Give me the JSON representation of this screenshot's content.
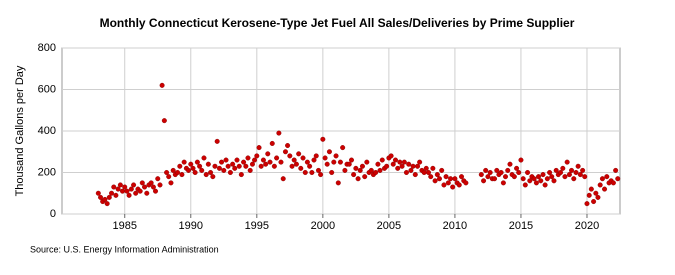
{
  "chart_data": {
    "type": "scatter",
    "title": "Monthly Connecticut Kerosene-Type Jet Fuel All Sales/Deliveries by Prime Supplier",
    "y_label": "Thousand Gallons per Day",
    "source": "Source: U.S. Energy Information Administration",
    "color": "#cc0000",
    "grid": true,
    "xlim": [
      1980.25,
      2022.5
    ],
    "xticks": [
      1985,
      1990,
      1995,
      2000,
      2005,
      2010,
      2015,
      2020
    ],
    "ylim": [
      0,
      800
    ],
    "yticks": [
      0,
      200,
      400,
      600,
      800
    ],
    "series": [
      {
        "name": "Connecticut",
        "color": "#cc0000",
        "x": [
          1983.0,
          1983.17,
          1983.33,
          1983.5,
          1983.67,
          1983.83,
          1984.0,
          1984.17,
          1984.33,
          1984.5,
          1984.67,
          1984.83,
          1985.0,
          1985.17,
          1985.33,
          1985.5,
          1985.67,
          1985.83,
          1986.0,
          1986.17,
          1986.33,
          1986.5,
          1986.67,
          1986.83,
          1987.0,
          1987.17,
          1987.33,
          1987.5,
          1987.67,
          1987.83,
          1988.0,
          1988.17,
          1988.33,
          1988.5,
          1988.67,
          1988.83,
          1989.0,
          1989.17,
          1989.33,
          1989.5,
          1989.67,
          1989.83,
          1990.0,
          1990.17,
          1990.33,
          1990.5,
          1990.67,
          1990.83,
          1991.0,
          1991.17,
          1991.33,
          1991.5,
          1991.67,
          1991.83,
          1992.0,
          1992.17,
          1992.33,
          1992.5,
          1992.67,
          1992.83,
          1993.0,
          1993.17,
          1993.33,
          1993.5,
          1993.67,
          1993.83,
          1994.0,
          1994.17,
          1994.33,
          1994.5,
          1994.67,
          1994.83,
          1995.0,
          1995.17,
          1995.33,
          1995.5,
          1995.67,
          1995.83,
          1996.0,
          1996.17,
          1996.33,
          1996.5,
          1996.67,
          1996.83,
          1997.0,
          1997.17,
          1997.33,
          1997.5,
          1997.67,
          1997.83,
          1998.0,
          1998.17,
          1998.33,
          1998.5,
          1998.67,
          1998.83,
          1999.0,
          1999.17,
          1999.33,
          1999.5,
          1999.67,
          1999.83,
          2000.0,
          2000.17,
          2000.33,
          2000.5,
          2000.67,
          2000.83,
          2001.0,
          2001.17,
          2001.33,
          2001.5,
          2001.67,
          2001.83,
          2002.0,
          2002.17,
          2002.33,
          2002.5,
          2002.67,
          2002.83,
          2003.0,
          2003.17,
          2003.33,
          2003.5,
          2003.67,
          2003.83,
          2004.0,
          2004.17,
          2004.33,
          2004.5,
          2004.67,
          2004.83,
          2005.0,
          2005.17,
          2005.33,
          2005.5,
          2005.67,
          2005.83,
          2006.0,
          2006.17,
          2006.33,
          2006.5,
          2006.67,
          2006.83,
          2007.0,
          2007.17,
          2007.33,
          2007.5,
          2007.67,
          2007.83,
          2008.0,
          2008.17,
          2008.33,
          2008.5,
          2008.67,
          2008.83,
          2009.0,
          2009.17,
          2009.33,
          2009.5,
          2009.67,
          2009.83,
          2010.0,
          2010.17,
          2010.33,
          2010.5,
          2010.67,
          2010.83,
          2012.0,
          2012.17,
          2012.33,
          2012.5,
          2012.67,
          2012.83,
          2013.0,
          2013.17,
          2013.33,
          2013.5,
          2013.67,
          2013.83,
          2014.0,
          2014.17,
          2014.33,
          2014.5,
          2014.67,
          2014.83,
          2015.0,
          2015.17,
          2015.33,
          2015.5,
          2015.67,
          2015.83,
          2016.0,
          2016.17,
          2016.33,
          2016.5,
          2016.67,
          2016.83,
          2017.0,
          2017.17,
          2017.33,
          2017.5,
          2017.67,
          2017.83,
          2018.0,
          2018.17,
          2018.33,
          2018.5,
          2018.67,
          2018.83,
          2019.0,
          2019.17,
          2019.33,
          2019.5,
          2019.67,
          2019.83,
          2020.0,
          2020.17,
          2020.33,
          2020.5,
          2020.67,
          2020.83,
          2021.0,
          2021.17,
          2021.33,
          2021.5,
          2021.67,
          2021.83,
          2022.0,
          2022.17,
          2022.33
        ],
        "values": [
          100,
          80,
          60,
          70,
          50,
          80,
          100,
          130,
          90,
          120,
          140,
          110,
          130,
          110,
          90,
          120,
          140,
          100,
          120,
          110,
          150,
          130,
          100,
          140,
          150,
          130,
          110,
          170,
          140,
          620,
          450,
          200,
          180,
          150,
          210,
          190,
          200,
          230,
          190,
          250,
          220,
          210,
          240,
          220,
          200,
          250,
          230,
          210,
          270,
          190,
          240,
          200,
          180,
          230,
          350,
          220,
          250,
          210,
          260,
          230,
          200,
          240,
          220,
          260,
          230,
          190,
          250,
          230,
          270,
          210,
          240,
          260,
          280,
          320,
          230,
          260,
          240,
          290,
          250,
          340,
          230,
          270,
          390,
          250,
          170,
          300,
          330,
          280,
          230,
          260,
          240,
          290,
          220,
          270,
          200,
          250,
          230,
          200,
          260,
          280,
          210,
          190,
          360,
          270,
          240,
          300,
          200,
          250,
          280,
          150,
          250,
          320,
          210,
          240,
          240,
          260,
          190,
          220,
          170,
          210,
          230,
          180,
          250,
          200,
          210,
          190,
          200,
          240,
          210,
          260,
          220,
          230,
          270,
          280,
          240,
          260,
          220,
          250,
          230,
          250,
          200,
          240,
          210,
          230,
          190,
          230,
          250,
          210,
          200,
          220,
          200,
          180,
          220,
          160,
          190,
          170,
          210,
          140,
          180,
          150,
          170,
          130,
          170,
          150,
          140,
          180,
          160,
          150,
          190,
          160,
          210,
          180,
          200,
          170,
          170,
          210,
          190,
          200,
          150,
          180,
          210,
          240,
          190,
          180,
          220,
          200,
          260,
          170,
          140,
          200,
          160,
          180,
          170,
          150,
          180,
          160,
          190,
          140,
          170,
          200,
          180,
          160,
          210,
          190,
          200,
          220,
          180,
          250,
          190,
          210,
          170,
          200,
          230,
          190,
          210,
          180,
          50,
          90,
          120,
          60,
          100,
          80,
          140,
          170,
          120,
          180,
          150,
          160,
          150,
          210,
          170
        ]
      }
    ]
  }
}
